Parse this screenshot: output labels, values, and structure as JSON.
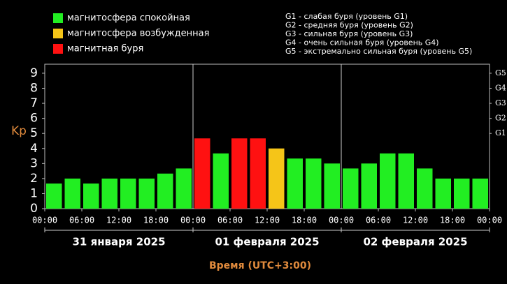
{
  "chart_data": {
    "type": "bar",
    "y_label": "Kp",
    "x_label": "Время (UTC+3:00)",
    "legend": [
      {
        "name": "магнитосфера спокойная",
        "color": "#22ee22"
      },
      {
        "name": "магнитосфера возбужденная",
        "color": "#f5c518"
      },
      {
        "name": "магнитная буря",
        "color": "#ff1111"
      }
    ],
    "storm_levels": [
      "G1 - слабая буря (уровень G1)",
      "G2 - средняя буря (уровень G2)",
      "G3 - сильная буря (уровень G3)",
      "G4 - очень сильная буря (уровень G4)",
      "G5 - экстремально сильная буря (уровень G5)"
    ],
    "x": [
      0,
      3,
      6,
      9,
      12,
      15,
      18,
      21,
      24,
      27,
      30,
      33,
      36,
      39,
      42,
      45,
      48,
      51,
      54,
      57,
      60,
      63,
      66,
      69
    ],
    "values": [
      1.67,
      2,
      1.67,
      2,
      2,
      2,
      2.33,
      2.67,
      4.67,
      3.67,
      4.67,
      4.67,
      4,
      3.33,
      3.33,
      3,
      2.67,
      3,
      3.67,
      3.67,
      2.67,
      2,
      2,
      2
    ],
    "colors": [
      "#22ee22",
      "#22ee22",
      "#22ee22",
      "#22ee22",
      "#22ee22",
      "#22ee22",
      "#22ee22",
      "#22ee22",
      "#ff1111",
      "#22ee22",
      "#ff1111",
      "#ff1111",
      "#f5c518",
      "#22ee22",
      "#22ee22",
      "#22ee22",
      "#22ee22",
      "#22ee22",
      "#22ee22",
      "#22ee22",
      "#22ee22",
      "#22ee22",
      "#22ee22",
      "#22ee22"
    ],
    "xlim": [
      0,
      72
    ],
    "xticks": [
      {
        "value": 0,
        "label": "00:00"
      },
      {
        "value": 6,
        "label": "06:00"
      },
      {
        "value": 12,
        "label": "12:00"
      },
      {
        "value": 18,
        "label": "18:00"
      },
      {
        "value": 24,
        "label": "00:00"
      },
      {
        "value": 30,
        "label": "06:00"
      },
      {
        "value": 36,
        "label": "12:00"
      },
      {
        "value": 42,
        "label": "18:00"
      },
      {
        "value": 48,
        "label": "00:00"
      },
      {
        "value": 54,
        "label": "06:00"
      },
      {
        "value": 60,
        "label": "12:00"
      },
      {
        "value": 66,
        "label": "18:00"
      },
      {
        "value": 72,
        "label": "00:00"
      }
    ],
    "days": [
      "31 января 2025",
      "01 февраля 2025",
      "02 февраля 2025"
    ],
    "ylim": [
      0,
      9.6
    ],
    "yticks": [
      0,
      1,
      2,
      3,
      4,
      5,
      6,
      7,
      8,
      9
    ],
    "y2lim": [
      0,
      9.6
    ],
    "y2ticks": [
      {
        "value": 5,
        "label": "G1"
      },
      {
        "value": 6,
        "label": "G2"
      },
      {
        "value": 7,
        "label": "G3"
      },
      {
        "value": 8,
        "label": "G4"
      },
      {
        "value": 9,
        "label": "G5"
      }
    ],
    "grid": false
  }
}
